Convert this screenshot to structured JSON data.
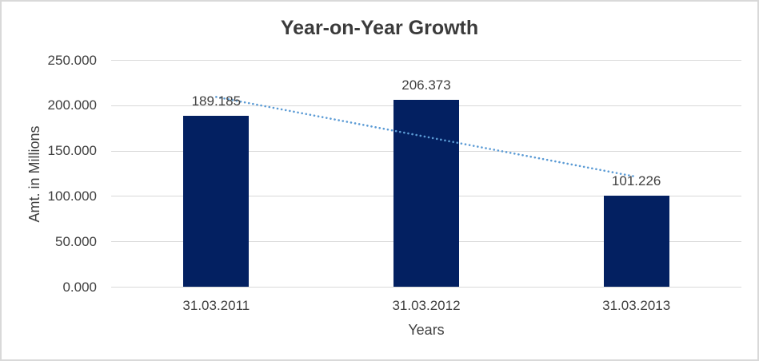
{
  "chart_data": {
    "type": "bar",
    "title": "Year-on-Year Growth",
    "xlabel": "Years",
    "ylabel": "Amt. in Millions",
    "categories": [
      "31.03.2011",
      "31.03.2012",
      "31.03.2013"
    ],
    "values": [
      189.185,
      206.373,
      101.226
    ],
    "data_labels": [
      "189.185",
      "206.373",
      "101.226"
    ],
    "ylim": [
      0,
      250
    ],
    "yticks": [
      {
        "value": 0,
        "label": "0.000"
      },
      {
        "value": 50,
        "label": "50.000"
      },
      {
        "value": 100,
        "label": "100.000"
      },
      {
        "value": 150,
        "label": "150.000"
      },
      {
        "value": 200,
        "label": "200.000"
      },
      {
        "value": 250,
        "label": "250.000"
      }
    ],
    "grid": true,
    "legend": "none",
    "trendline": {
      "type": "linear",
      "style": "dotted",
      "start_value": 209.6,
      "end_value": 121.6
    },
    "colors": {
      "bar": "#032061",
      "trendline": "#5b9bd5",
      "gridline": "#d9d9d9",
      "text": "#404040",
      "title": "#3b3b3b"
    }
  }
}
